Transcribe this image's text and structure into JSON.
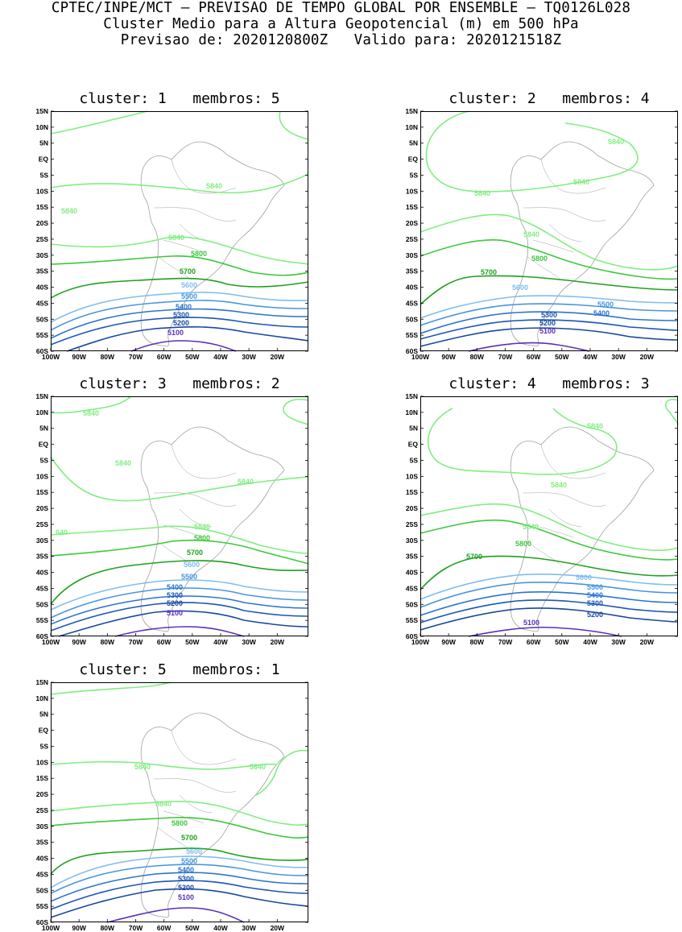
{
  "header": {
    "line1": "CPTEC/INPE/MCT — PREVISAO DE TEMPO GLOBAL POR ENSEMBLE — TQ0126L028",
    "line2": "Cluster Medio para a Altura Geopotencial (m) em 500 hPa",
    "line3": "Previsao de: 2020120800Z   Valido para: 2020121518Z"
  },
  "axes": {
    "lat_labels": [
      "15N",
      "10N",
      "5N",
      "EQ",
      "5S",
      "10S",
      "15S",
      "20S",
      "25S",
      "30S",
      "35S",
      "40S",
      "45S",
      "50S",
      "55S",
      "60S"
    ],
    "lon_labels": [
      "100W",
      "90W",
      "80W",
      "70W",
      "60W",
      "50W",
      "40W",
      "30W",
      "20W"
    ]
  },
  "colors": {
    "5840": "#80ee80",
    "5800": "#3cc83c",
    "5700": "#1ea01e",
    "5600": "#7fbdf0",
    "5500": "#4695e0",
    "5400": "#2b74cf",
    "5300": "#1a55b5",
    "5200": "#1847a0",
    "5100": "#5a2fb8",
    "coast": "#a0a0a0"
  },
  "panels": [
    {
      "title": "cluster: 1   membros: 5",
      "labels": [
        "5840",
        "5840",
        "5840",
        "5800",
        "5700",
        "5600",
        "5500",
        "5400",
        "5300",
        "5200",
        "5100"
      ]
    },
    {
      "title": "cluster: 2   membros: 4",
      "labels": [
        "5840",
        "5840",
        "5840",
        "5840",
        "5800",
        "5700",
        "5600",
        "5500",
        "5400",
        "5300",
        "5200",
        "5100"
      ]
    },
    {
      "title": "cluster: 3   membros: 2",
      "labels": [
        "5840",
        "5840",
        "5840",
        "640",
        "5840",
        "5800",
        "5700",
        "5600",
        "5500",
        "5400",
        "5300",
        "5200",
        "5100"
      ]
    },
    {
      "title": "cluster: 4   membros: 3",
      "labels": [
        "5840",
        "5840",
        "5840",
        "5800",
        "5700",
        "5600",
        "5500",
        "5400",
        "5300",
        "5200",
        "5100"
      ]
    },
    {
      "title": "cluster: 5   membros: 1",
      "labels": [
        "5840",
        "5840",
        "5840",
        "5800",
        "5700",
        "5600",
        "5500",
        "5400",
        "5300",
        "5200",
        "5100"
      ]
    }
  ]
}
